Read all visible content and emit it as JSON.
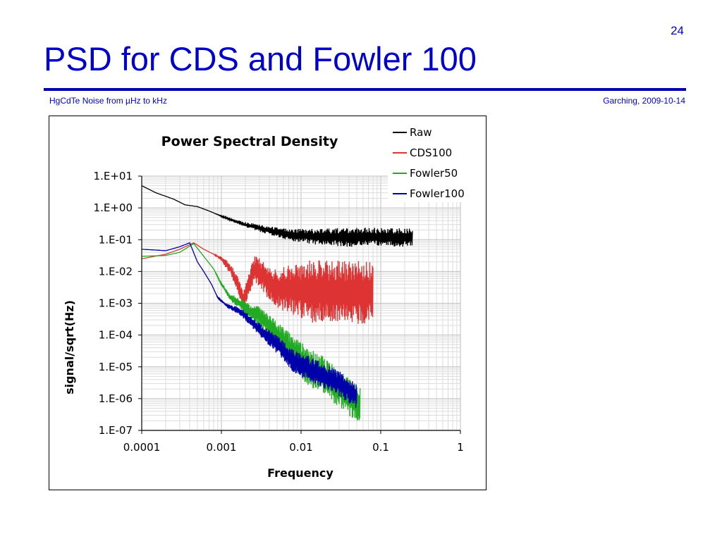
{
  "slide": {
    "number": "24",
    "title": "PSD for CDS and Fowler 100",
    "footer_left": "HgCdTe Noise from µHz to kHz",
    "footer_right": "Garching, 2009-10-14"
  },
  "chart_data": {
    "type": "line",
    "title": "Power Spectral Density",
    "xlabel": "Frequency",
    "ylabel": "signal/sqrt(Hz)",
    "xscale": "log",
    "yscale": "log",
    "xlim": [
      0.0001,
      1
    ],
    "ylim": [
      1e-07,
      10
    ],
    "x_ticks": [
      "0.0001",
      "0.001",
      "0.01",
      "0.1",
      "1"
    ],
    "y_ticks": [
      "1.E+01",
      "1.E+00",
      "1.E-01",
      "1.E-02",
      "1.E-03",
      "1.E-04",
      "1.E-05",
      "1.E-06",
      "1.E-07"
    ],
    "grid": true,
    "legend_position": "top-right",
    "series": [
      {
        "name": "Raw",
        "color": "#000000",
        "noise_band": 0.3,
        "points": [
          [
            0.0001,
            5
          ],
          [
            0.00015,
            3
          ],
          [
            0.00025,
            1.9
          ],
          [
            0.00035,
            1.25
          ],
          [
            0.0005,
            1.1
          ],
          [
            0.0007,
            0.8
          ],
          [
            0.001,
            0.55
          ],
          [
            0.0014,
            0.4
          ],
          [
            0.002,
            0.3
          ],
          [
            0.003,
            0.23
          ],
          [
            0.005,
            0.17
          ],
          [
            0.008,
            0.14
          ],
          [
            0.012,
            0.13
          ],
          [
            0.02,
            0.12
          ],
          [
            0.05,
            0.12
          ],
          [
            0.1,
            0.12
          ],
          [
            0.25,
            0.12
          ]
        ]
      },
      {
        "name": "CDS100",
        "color": "#dd3333",
        "noise_band": 1.0,
        "points": [
          [
            0.0001,
            0.025
          ],
          [
            0.0002,
            0.035
          ],
          [
            0.0003,
            0.05
          ],
          [
            0.00045,
            0.08
          ],
          [
            0.0006,
            0.05
          ],
          [
            0.0008,
            0.035
          ],
          [
            0.001,
            0.025
          ],
          [
            0.0013,
            0.012
          ],
          [
            0.0016,
            0.004
          ],
          [
            0.0019,
            0.0012
          ],
          [
            0.0022,
            0.004
          ],
          [
            0.0026,
            0.012
          ],
          [
            0.0032,
            0.008
          ],
          [
            0.004,
            0.004
          ],
          [
            0.005,
            0.003
          ],
          [
            0.01,
            0.0025
          ],
          [
            0.03,
            0.0022
          ],
          [
            0.08,
            0.0022
          ]
        ]
      },
      {
        "name": "Fowler50",
        "color": "#22aa22",
        "noise_band": 0.6,
        "points": [
          [
            0.0001,
            0.03
          ],
          [
            0.0002,
            0.032
          ],
          [
            0.0003,
            0.04
          ],
          [
            0.00045,
            0.075
          ],
          [
            0.0006,
            0.03
          ],
          [
            0.0008,
            0.012
          ],
          [
            0.001,
            0.004
          ],
          [
            0.0013,
            0.0015
          ],
          [
            0.0017,
            0.001
          ],
          [
            0.0022,
            0.0006
          ],
          [
            0.003,
            0.0004
          ],
          [
            0.005,
            0.0001
          ],
          [
            0.008,
            3e-05
          ],
          [
            0.012,
            1e-05
          ],
          [
            0.02,
            5e-06
          ],
          [
            0.035,
            1.5e-06
          ],
          [
            0.055,
            6e-07
          ]
        ]
      },
      {
        "name": "Fowler100",
        "color": "#0000aa",
        "noise_band": 0.4,
        "points": [
          [
            0.0001,
            0.05
          ],
          [
            0.0002,
            0.045
          ],
          [
            0.0003,
            0.06
          ],
          [
            0.0004,
            0.08
          ],
          [
            0.0005,
            0.02
          ],
          [
            0.0006,
            0.01
          ],
          [
            0.00075,
            0.004
          ],
          [
            0.0009,
            0.0015
          ],
          [
            0.0012,
            0.0008
          ],
          [
            0.0016,
            0.0006
          ],
          [
            0.002,
            0.0004
          ],
          [
            0.003,
            0.00015
          ],
          [
            0.005,
            5e-05
          ],
          [
            0.008,
            1.5e-05
          ],
          [
            0.015,
            7e-06
          ],
          [
            0.03,
            3e-06
          ],
          [
            0.05,
            1.2e-06
          ]
        ]
      }
    ]
  }
}
